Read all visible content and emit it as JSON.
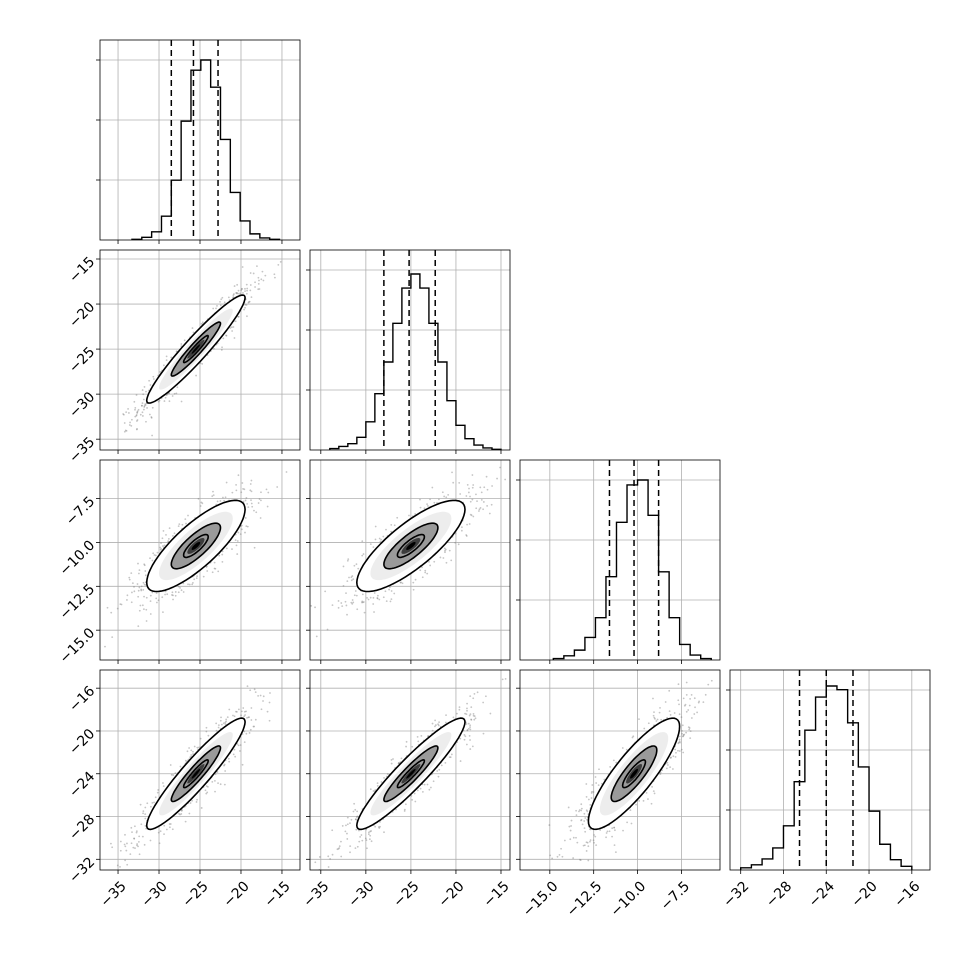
{
  "chart_data": {
    "type": "corner",
    "title": "",
    "n_parameters": 4,
    "parameters": [
      {
        "index": 0,
        "label": "",
        "range": [
          -37.2,
          -12.8
        ],
        "ticks": [
          -35,
          -30,
          -25,
          -20,
          -15
        ],
        "tick_labels": [
          "−35",
          "−30",
          "−25",
          "−20",
          "−15"
        ],
        "mean": -25.5,
        "sd": 3.0,
        "quantiles": [
          -28.5,
          -25.8,
          -22.8
        ],
        "histogram": {
          "edges": [
            -33.3,
            -32.1,
            -30.9,
            -29.7,
            -28.5,
            -27.3,
            -26.1,
            -24.9,
            -23.7,
            -22.5,
            -21.3,
            -20.1,
            -18.9,
            -17.7,
            -16.5,
            -15.3
          ],
          "counts": [
            1,
            4,
            12,
            35,
            88,
            175,
            250,
            265,
            225,
            148,
            70,
            28,
            9,
            3,
            1
          ],
          "peak_fraction": 0.9
        }
      },
      {
        "index": 1,
        "label": "",
        "range": [
          -36.2,
          -14.0
        ],
        "ticks": [
          -35,
          -30,
          -25,
          -20,
          -15
        ],
        "tick_labels": [
          "−35",
          "−30",
          "−25",
          "−20",
          "−15"
        ],
        "mean": -25.0,
        "sd": 3.0,
        "quantiles": [
          -28.0,
          -25.2,
          -22.3
        ],
        "histogram": {
          "edges": [
            -34.0,
            -33.0,
            -32.0,
            -31.0,
            -30.0,
            -29.0,
            -28.0,
            -27.0,
            -26.0,
            -25.0,
            -24.0,
            -23.0,
            -22.0,
            -21.0,
            -20.0,
            -19.0,
            -18.0,
            -17.0,
            -16.0,
            -15.0
          ],
          "counts": [
            2,
            5,
            9,
            18,
            40,
            80,
            125,
            180,
            230,
            250,
            230,
            180,
            125,
            70,
            35,
            16,
            7,
            3,
            1
          ],
          "peak_fraction": 0.88
        }
      },
      {
        "index": 2,
        "label": "",
        "range": [
          -16.7,
          -5.3
        ],
        "ticks": [
          -15,
          -12.5,
          -10,
          -7.5
        ],
        "tick_labels": [
          "−15.0",
          "−12.5",
          "−10.0",
          "−7.5"
        ],
        "left_tick_labels": [
          "−7.5",
          "−10.0",
          "−12.5",
          "−15.0"
        ],
        "mean": -10.2,
        "sd": 1.3,
        "quantiles": [
          -11.6,
          -10.2,
          -8.8
        ],
        "histogram": {
          "edges": [
            -14.8,
            -14.2,
            -13.6,
            -13.0,
            -12.4,
            -11.8,
            -11.2,
            -10.6,
            -10.0,
            -9.4,
            -8.8,
            -8.2,
            -7.6,
            -7.0,
            -6.4,
            -5.8
          ],
          "counts": [
            2,
            6,
            14,
            32,
            60,
            118,
            195,
            248,
            255,
            205,
            125,
            60,
            22,
            7,
            2
          ],
          "peak_fraction": 0.9
        }
      },
      {
        "index": 3,
        "label": "",
        "range": [
          -33.0,
          -14.3
        ],
        "ticks": [
          -32,
          -28,
          -24,
          -20,
          -16
        ],
        "tick_labels": [
          "−32",
          "−28",
          "−24",
          "−20",
          "−16"
        ],
        "left_tick_labels": [
          "−16",
          "−20",
          "−24",
          "−28",
          "−32"
        ],
        "mean": -24.0,
        "sd": 2.6,
        "quantiles": [
          -26.5,
          -24.0,
          -21.5
        ],
        "histogram": {
          "edges": [
            -32.0,
            -31.0,
            -30.0,
            -29.0,
            -28.0,
            -27.0,
            -26.0,
            -25.0,
            -24.0,
            -23.0,
            -22.0,
            -21.0,
            -20.0,
            -19.0,
            -18.0,
            -17.0,
            -16.0
          ],
          "counts": [
            3,
            7,
            15,
            30,
            60,
            120,
            190,
            235,
            250,
            245,
            200,
            140,
            80,
            35,
            14,
            5
          ],
          "peak_fraction": 0.92
        }
      }
    ],
    "pairs": [
      {
        "x": 0,
        "y": 1,
        "correlation": 0.95
      },
      {
        "x": 0,
        "y": 2,
        "correlation": 0.8
      },
      {
        "x": 1,
        "y": 2,
        "correlation": 0.8
      },
      {
        "x": 0,
        "y": 3,
        "correlation": 0.93
      },
      {
        "x": 1,
        "y": 3,
        "correlation": 0.93
      },
      {
        "x": 2,
        "y": 3,
        "correlation": 0.85
      }
    ],
    "contour_levels": [
      0.5,
      1.0,
      1.5,
      2.0
    ],
    "scatter_points_per_panel": 900,
    "grid": true,
    "legend": "none"
  },
  "colors": {
    "scatter": "#7f7f7f",
    "line": "#000000",
    "grid": "#b0b0b0",
    "fill_light": "#ededed",
    "fill_mid": "#9a9a9a",
    "fill_dark": "#3c3c3c",
    "fill_core": "#000000"
  }
}
